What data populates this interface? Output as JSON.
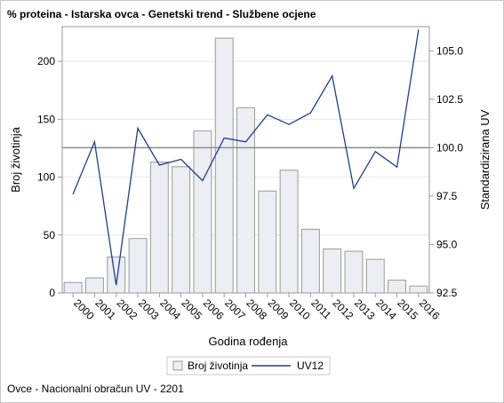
{
  "title": "% proteina - Istarska ovca - Genetski trend - Službene ocjene",
  "footnote": "Ovce - Nacionalni obračun UV - 2201",
  "chart_data": {
    "type": "bar",
    "categories": [
      "2000",
      "2001",
      "2002",
      "2003",
      "2004",
      "2005",
      "2006",
      "2007",
      "2008",
      "2009",
      "2010",
      "2011",
      "2012",
      "2013",
      "2014",
      "2015",
      "2016"
    ],
    "xlabel": "Godina rođenja",
    "ylabel": "Broj životinja",
    "y2label": "Standardizirana UV",
    "ylim": [
      0,
      230
    ],
    "y2lim": [
      92.5,
      106.25
    ],
    "yticks": [
      0,
      50,
      100,
      150,
      200
    ],
    "y2ticks": [
      "92.5",
      "95.0",
      "97.5",
      "100.0",
      "102.5",
      "105.0"
    ],
    "reference_line_y2": 100,
    "grid": true,
    "legend_position": "bottom",
    "series": [
      {
        "name": "Broj životinja",
        "type": "bar",
        "axis": "left",
        "color": "#eceef4",
        "stroke": "#9a9a9a",
        "values": [
          9,
          13,
          31,
          47,
          113,
          109,
          140,
          220,
          160,
          88,
          106,
          55,
          38,
          36,
          29,
          11,
          6
        ]
      },
      {
        "name": "UV12",
        "type": "line",
        "axis": "right",
        "color": "#1f3f8c",
        "values": [
          97.6,
          100.3,
          92.9,
          101.0,
          99.1,
          99.4,
          98.3,
          100.5,
          100.3,
          101.7,
          101.2,
          101.8,
          103.7,
          97.9,
          99.8,
          99.0,
          106.1
        ]
      }
    ]
  }
}
